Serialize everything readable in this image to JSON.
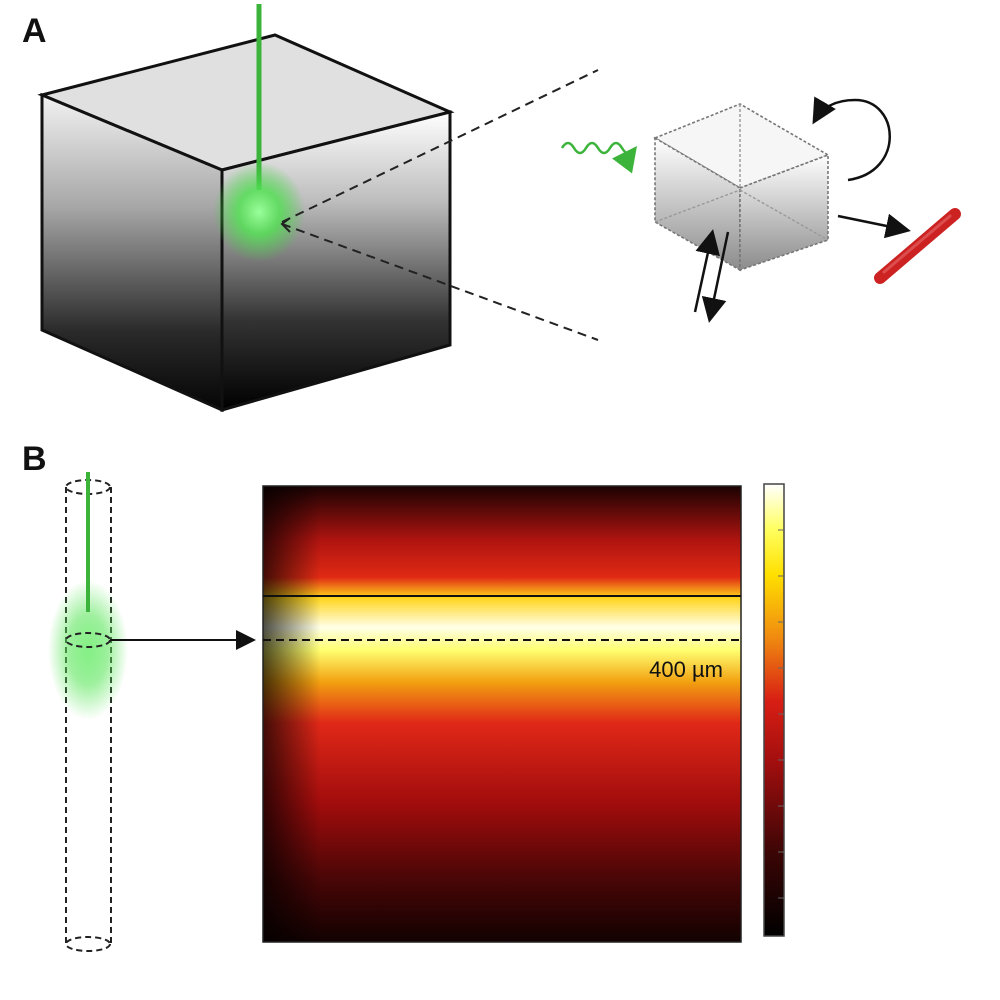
{
  "panels": {
    "a": {
      "label": "A"
    },
    "b": {
      "label": "B",
      "scale_text": "400 µm"
    }
  },
  "colors": {
    "laser": "#3cb43c",
    "glow": "#5ee65e",
    "detector": "#cc2222",
    "heatmap_stops": [
      "#000000",
      "#3a0505",
      "#8a0c0c",
      "#d81e14",
      "#f07a10",
      "#ffd000",
      "#ffff40",
      "#ffffff"
    ]
  }
}
